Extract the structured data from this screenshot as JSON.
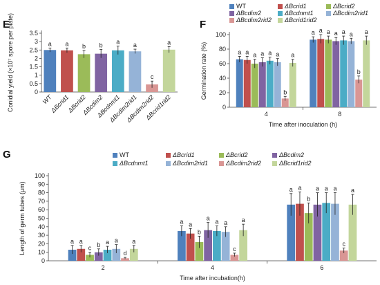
{
  "colors": {
    "WT": "#4f81bd",
    "Bcrid1": "#c0504d",
    "Bcrid2": "#9bbb59",
    "Bcdim2": "#8064a2",
    "Bcdnmt1": "#4bacc6",
    "Bcdim2rid1": "#95b3d7",
    "Bcdim2rid2": "#d99694",
    "Bcrid1rid2": "#c3d69b"
  },
  "panel_letters": {
    "E": "E",
    "F": "F",
    "G": "G"
  },
  "chart_data": [
    {
      "id": "E",
      "type": "bar",
      "ylabel": "Conidial yield (×10⁷ spore per plate)",
      "ylim": [
        0,
        3.5
      ],
      "yticks": [
        0,
        0.5,
        1,
        1.5,
        2,
        2.5,
        3,
        3.5
      ],
      "ytick_labels": [
        "0",
        "0.5",
        "1",
        "1.5",
        "2",
        "2.5",
        "3",
        "3.5"
      ],
      "categories": [
        "WT",
        "ΔBcrid1",
        "ΔBcrid2",
        "ΔBcdim2",
        "ΔBcdnmt1",
        "ΔBcdim2rid1",
        "ΔBcdim2rid2",
        "ΔBcrid1rid2"
      ],
      "color_keys": [
        "WT",
        "Bcrid1",
        "Bcrid2",
        "Bcdim2",
        "Bcdnmt1",
        "Bcdim2rid1",
        "Bcdim2rid2",
        "Bcrid1rid2"
      ],
      "values": [
        2.5,
        2.48,
        2.25,
        2.28,
        2.48,
        2.42,
        0.45,
        2.52
      ],
      "errors": [
        0.12,
        0.14,
        0.22,
        0.25,
        0.25,
        0.13,
        0.2,
        0.18
      ],
      "letters": [
        "a",
        "a",
        "b",
        "b",
        "a",
        "a",
        "c",
        "a"
      ]
    },
    {
      "id": "F",
      "type": "bar",
      "ylabel": "Germination rate (%)",
      "xlabel": "Time after inoculation (h)",
      "ylim": [
        0,
        100
      ],
      "yticks": [
        0,
        20,
        40,
        60,
        80,
        100
      ],
      "ytick_labels": [
        "0",
        "20",
        "40",
        "60",
        "80",
        "100"
      ],
      "categories": [
        "4",
        "8"
      ],
      "series": [
        {
          "name": "WT",
          "color_key": "WT",
          "values": [
            66,
            93
          ],
          "errors": [
            4,
            4
          ],
          "letters": [
            "a",
            "a"
          ]
        },
        {
          "name": "ΔBcrid1",
          "color_key": "Bcrid1",
          "values": [
            65,
            94
          ],
          "errors": [
            5,
            6
          ],
          "letters": [
            "a",
            "a"
          ]
        },
        {
          "name": "ΔBcrid2",
          "color_key": "Bcrid2",
          "values": [
            60,
            93
          ],
          "errors": [
            6,
            5
          ],
          "letters": [
            "a",
            "a"
          ]
        },
        {
          "name": "ΔBcdim2",
          "color_key": "Bcdim2",
          "values": [
            62,
            91
          ],
          "errors": [
            6,
            5
          ],
          "letters": [
            "a",
            "a"
          ]
        },
        {
          "name": "ΔBcdnmt1",
          "color_key": "Bcdnmt1",
          "values": [
            64,
            92
          ],
          "errors": [
            5,
            6
          ],
          "letters": [
            "a",
            "a"
          ]
        },
        {
          "name": "ΔBcdim2rid1",
          "color_key": "Bcdim2rid1",
          "values": [
            62,
            91
          ],
          "errors": [
            5,
            4
          ],
          "letters": [
            "a",
            "a"
          ]
        },
        {
          "name": "ΔBcdim2rid2",
          "color_key": "Bcdim2rid2",
          "values": [
            12,
            38
          ],
          "errors": [
            3,
            5
          ],
          "letters": [
            "b",
            "b"
          ]
        },
        {
          "name": "ΔBcrid1rid2",
          "color_key": "Bcrid1rid2",
          "values": [
            61,
            92
          ],
          "errors": [
            5,
            6
          ],
          "letters": [
            "a",
            "a"
          ]
        }
      ],
      "legend_position": "top"
    },
    {
      "id": "G",
      "type": "bar",
      "ylabel": "Length of germ tubes (μm)",
      "xlabel": "Time after incubation(h)",
      "ylim": [
        0,
        100
      ],
      "yticks": [
        0,
        10,
        20,
        30,
        40,
        50,
        60,
        70,
        80,
        90,
        100
      ],
      "ytick_labels": [
        "0",
        "10",
        "20",
        "30",
        "40",
        "50",
        "60",
        "70",
        "80",
        "90",
        "100"
      ],
      "categories": [
        "2",
        "4",
        "6"
      ],
      "series": [
        {
          "name": "WT",
          "color_key": "WT",
          "values": [
            13,
            35,
            66
          ],
          "errors": [
            5,
            6,
            13
          ],
          "letters": [
            "a",
            "a",
            "a"
          ]
        },
        {
          "name": "ΔBcrid1",
          "color_key": "Bcrid1",
          "values": [
            14,
            32,
            67
          ],
          "errors": [
            4,
            6,
            14
          ],
          "letters": [
            "a",
            "a",
            "a"
          ]
        },
        {
          "name": "ΔBcrid2",
          "color_key": "Bcrid2",
          "values": [
            7,
            22,
            56
          ],
          "errors": [
            3,
            7,
            12
          ],
          "letters": [
            "c",
            "b",
            "b"
          ]
        },
        {
          "name": "ΔBcdim2",
          "color_key": "Bcdim2",
          "values": [
            10,
            36,
            66
          ],
          "errors": [
            4,
            9,
            14
          ],
          "letters": [
            "b",
            "a",
            "a"
          ]
        },
        {
          "name": "ΔBcdnmt1",
          "color_key": "Bcdnmt1",
          "values": [
            13,
            35,
            68
          ],
          "errors": [
            4,
            6,
            12
          ],
          "letters": [
            "a",
            "a",
            "a"
          ]
        },
        {
          "name": "ΔBcdim2rid1",
          "color_key": "Bcdim2rid1",
          "values": [
            14,
            34,
            67
          ],
          "errors": [
            5,
            6,
            13
          ],
          "letters": [
            "a",
            "a",
            "a"
          ]
        },
        {
          "name": "ΔBcdim2rid2",
          "color_key": "Bcdim2rid2",
          "values": [
            3,
            7,
            12
          ],
          "errors": [
            1,
            2,
            3
          ],
          "letters": [
            "d",
            "c",
            "c"
          ]
        },
        {
          "name": "ΔBcrid1rid2",
          "color_key": "Bcrid1rid2",
          "values": [
            14,
            36,
            66
          ],
          "errors": [
            4,
            7,
            12
          ],
          "letters": [
            "a",
            "a",
            "a"
          ]
        }
      ],
      "legend_position": "top"
    }
  ]
}
